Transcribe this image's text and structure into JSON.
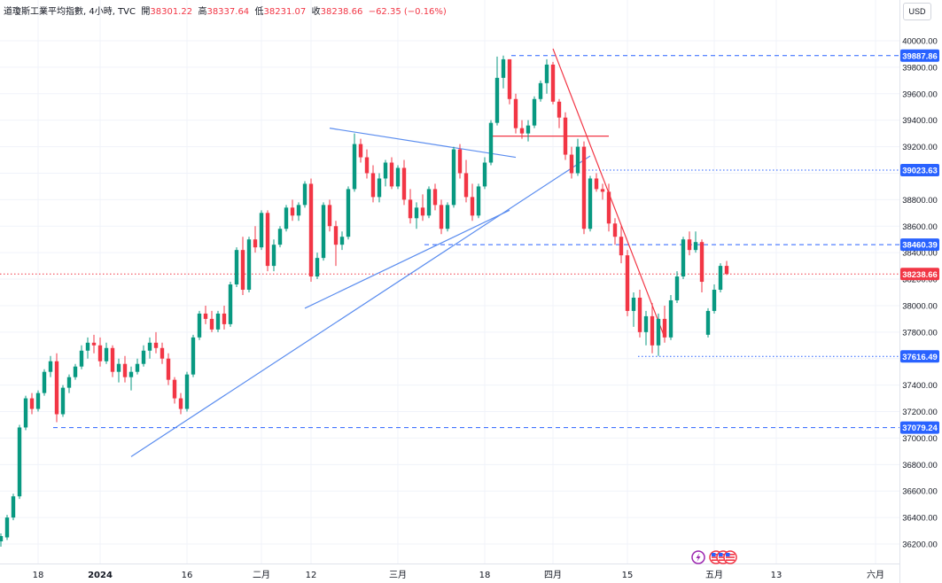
{
  "header": {
    "title": "道瓊斯工業平均指數, 4小時, TVC",
    "open_label": "開",
    "open": "38301.22",
    "high_label": "高",
    "high": "38337.64",
    "low_label": "低",
    "low": "38231.07",
    "close_label": "收",
    "close": "38238.66",
    "change": "−62.35 (−0.16%)"
  },
  "currency_button": "USD",
  "colors": {
    "up": "#089981",
    "down": "#f23645",
    "trend_blue": "#5b8def",
    "trend_red": "#f23645",
    "grid": "#f0f3fa",
    "axis_text": "#131722"
  },
  "events": [
    {
      "icon": "lightning-icon"
    },
    {
      "icon": "us-flag-icon"
    },
    {
      "icon": "us-flag-icon"
    },
    {
      "icon": "us-flag-icon"
    }
  ],
  "chart_data": {
    "type": "candlestick",
    "ylim": [
      36100,
      40050
    ],
    "y_ticks": [
      36200,
      36400,
      36600,
      36800,
      37000,
      37200,
      37400,
      37600,
      37800,
      38000,
      38200,
      38400,
      38600,
      38800,
      39000,
      39200,
      39400,
      39600,
      39800,
      40000
    ],
    "y_tick_labels": [
      "36200.00",
      "36400.00",
      "36600.00",
      "36800.00",
      "37000.00",
      "37200.00",
      "37400.00",
      "37600.00",
      "37800.00",
      "38000.00",
      "38200.00",
      "38400.00",
      "38600.00",
      "38800.00",
      "39000.00",
      "39200.00",
      "39400.00",
      "39600.00",
      "39800.00",
      "40000.00"
    ],
    "x_labels": [
      {
        "label": "18",
        "i": 6
      },
      {
        "label": "2024",
        "i": 16
      },
      {
        "label": "16",
        "i": 30
      },
      {
        "label": "二月",
        "i": 42
      },
      {
        "label": "12",
        "i": 50
      },
      {
        "label": "三月",
        "i": 64
      },
      {
        "label": "18",
        "i": 78
      },
      {
        "label": "四月",
        "i": 89
      },
      {
        "label": "15",
        "i": 101
      },
      {
        "label": "五月",
        "i": 115
      },
      {
        "label": "13",
        "i": 125
      },
      {
        "label": "六月",
        "i": 141
      }
    ],
    "price_lines": [
      {
        "label": "39887.86",
        "value": 39887.86,
        "style": "dashed",
        "color": "#2962ff"
      },
      {
        "label": "39023.63",
        "value": 39023.63,
        "style": "dotted",
        "color": "#2962ff"
      },
      {
        "label": "38460.39",
        "value": 38460.39,
        "style": "dashed",
        "color": "#2962ff"
      },
      {
        "label": "38238.66",
        "value": 38238.66,
        "style": "dotted",
        "color": "#f23645"
      },
      {
        "label": "37616.49",
        "value": 37616.49,
        "style": "dotted",
        "color": "#2962ff"
      },
      {
        "label": "37079.24",
        "value": 37079.24,
        "style": "dashed",
        "color": "#2962ff"
      }
    ],
    "trendlines": [
      {
        "from": [
          21,
          36860
        ],
        "to": [
          95,
          39130
        ],
        "color": "blue"
      },
      {
        "from": [
          49,
          37980
        ],
        "to": [
          82,
          38720
        ],
        "color": "blue"
      },
      {
        "from": [
          53,
          39340
        ],
        "to": [
          83,
          39120
        ],
        "color": "blue"
      },
      {
        "from": [
          79,
          39280
        ],
        "to": [
          98,
          39280
        ],
        "color": "red"
      },
      {
        "from": [
          89,
          39940
        ],
        "to": [
          107,
          37760
        ],
        "color": "red"
      }
    ],
    "candles": [
      [
        36220,
        36280,
        36180,
        36260
      ],
      [
        36250,
        36420,
        36230,
        36400
      ],
      [
        36400,
        36580,
        36380,
        36560
      ],
      [
        36560,
        37100,
        36540,
        37080
      ],
      [
        37080,
        37320,
        37060,
        37300
      ],
      [
        37300,
        37340,
        37180,
        37220
      ],
      [
        37220,
        37360,
        37200,
        37340
      ],
      [
        37340,
        37520,
        37320,
        37500
      ],
      [
        37500,
        37620,
        37460,
        37580
      ],
      [
        37580,
        37640,
        37120,
        37180
      ],
      [
        37180,
        37400,
        37160,
        37380
      ],
      [
        37380,
        37480,
        37340,
        37460
      ],
      [
        37460,
        37560,
        37440,
        37540
      ],
      [
        37540,
        37700,
        37520,
        37660
      ],
      [
        37660,
        37760,
        37600,
        37720
      ],
      [
        37720,
        37780,
        37640,
        37700
      ],
      [
        37700,
        37760,
        37540,
        37580
      ],
      [
        37580,
        37720,
        37560,
        37680
      ],
      [
        37680,
        37700,
        37460,
        37500
      ],
      [
        37500,
        37600,
        37420,
        37560
      ],
      [
        37560,
        37620,
        37420,
        37460
      ],
      [
        37460,
        37540,
        37360,
        37500
      ],
      [
        37500,
        37600,
        37480,
        37560
      ],
      [
        37560,
        37700,
        37540,
        37660
      ],
      [
        37660,
        37760,
        37600,
        37720
      ],
      [
        37720,
        37800,
        37640,
        37680
      ],
      [
        37680,
        37720,
        37560,
        37600
      ],
      [
        37600,
        37640,
        37400,
        37440
      ],
      [
        37440,
        37460,
        37260,
        37300
      ],
      [
        37300,
        37340,
        37180,
        37220
      ],
      [
        37220,
        37500,
        37200,
        37480
      ],
      [
        37480,
        37780,
        37460,
        37760
      ],
      [
        37760,
        37960,
        37740,
        37940
      ],
      [
        37940,
        38000,
        37860,
        37900
      ],
      [
        37900,
        37960,
        37800,
        37820
      ],
      [
        37820,
        37960,
        37800,
        37940
      ],
      [
        37940,
        38000,
        37820,
        37860
      ],
      [
        37860,
        38180,
        37840,
        38160
      ],
      [
        38160,
        38440,
        38140,
        38420
      ],
      [
        38420,
        38520,
        38080,
        38120
      ],
      [
        38120,
        38520,
        38100,
        38500
      ],
      [
        38500,
        38600,
        38400,
        38440
      ],
      [
        38440,
        38720,
        38420,
        38700
      ],
      [
        38700,
        38720,
        38260,
        38300
      ],
      [
        38300,
        38500,
        38260,
        38460
      ],
      [
        38460,
        38600,
        38440,
        38580
      ],
      [
        38580,
        38760,
        38560,
        38740
      ],
      [
        38740,
        38800,
        38640,
        38680
      ],
      [
        38680,
        38780,
        38640,
        38760
      ],
      [
        38760,
        38940,
        38740,
        38920
      ],
      [
        38920,
        38960,
        38180,
        38220
      ],
      [
        38220,
        38400,
        38200,
        38360
      ],
      [
        38360,
        38780,
        38340,
        38760
      ],
      [
        38760,
        38800,
        38560,
        38600
      ],
      [
        38600,
        38640,
        38300,
        38460
      ],
      [
        38460,
        38560,
        38420,
        38520
      ],
      [
        38520,
        38900,
        38500,
        38880
      ],
      [
        38880,
        39300,
        38860,
        39220
      ],
      [
        39220,
        39260,
        39080,
        39120
      ],
      [
        39120,
        39180,
        38960,
        39000
      ],
      [
        39000,
        39060,
        38780,
        38820
      ],
      [
        38820,
        39000,
        38780,
        38960
      ],
      [
        38960,
        39100,
        38900,
        39080
      ],
      [
        39080,
        39120,
        38880,
        38900
      ],
      [
        38900,
        39060,
        38880,
        39040
      ],
      [
        39040,
        39100,
        38760,
        38800
      ],
      [
        38800,
        38880,
        38620,
        38660
      ],
      [
        38660,
        38780,
        38580,
        38740
      ],
      [
        38740,
        38840,
        38640,
        38680
      ],
      [
        38680,
        38900,
        38660,
        38880
      ],
      [
        38880,
        38920,
        38720,
        38760
      ],
      [
        38760,
        38800,
        38540,
        38580
      ],
      [
        38580,
        38780,
        38560,
        38760
      ],
      [
        38760,
        39200,
        38740,
        39180
      ],
      [
        39180,
        39220,
        38960,
        39000
      ],
      [
        39000,
        39100,
        38780,
        38820
      ],
      [
        38820,
        38920,
        38640,
        38680
      ],
      [
        38680,
        38920,
        38660,
        38900
      ],
      [
        38900,
        39120,
        38880,
        39080
      ],
      [
        39080,
        39400,
        39060,
        39380
      ],
      [
        39380,
        39880,
        39360,
        39720
      ],
      [
        39720,
        39888,
        39640,
        39860
      ],
      [
        39860,
        39860,
        39520,
        39560
      ],
      [
        39560,
        39600,
        39300,
        39340
      ],
      [
        39340,
        39400,
        39260,
        39300
      ],
      [
        39300,
        39400,
        39240,
        39360
      ],
      [
        39360,
        39580,
        39340,
        39560
      ],
      [
        39560,
        39700,
        39540,
        39680
      ],
      [
        39680,
        39860,
        39600,
        39820
      ],
      [
        39820,
        39840,
        39520,
        39540
      ],
      [
        39540,
        39560,
        39340,
        39420
      ],
      [
        39420,
        39460,
        39100,
        39140
      ],
      [
        39140,
        39200,
        38960,
        39000
      ],
      [
        39000,
        39260,
        38980,
        39200
      ],
      [
        39200,
        39240,
        38540,
        38580
      ],
      [
        38580,
        38980,
        38560,
        38960
      ],
      [
        38960,
        39000,
        38860,
        38880
      ],
      [
        38880,
        38920,
        38800,
        38860
      ],
      [
        38860,
        38920,
        38560,
        38620
      ],
      [
        38620,
        38660,
        38460,
        38520
      ],
      [
        38520,
        38600,
        38320,
        38380
      ],
      [
        38380,
        38420,
        37920,
        37960
      ],
      [
        37960,
        38100,
        37840,
        38060
      ],
      [
        38060,
        38120,
        37760,
        37800
      ],
      [
        37800,
        37960,
        37700,
        37920
      ],
      [
        37920,
        38020,
        37640,
        37700
      ],
      [
        37700,
        37940,
        37620,
        37900
      ],
      [
        37900,
        38000,
        37720,
        37760
      ],
      [
        37760,
        38080,
        37740,
        38040
      ],
      [
        38040,
        38260,
        38020,
        38220
      ],
      [
        38220,
        38520,
        38200,
        38500
      ],
      [
        38500,
        38560,
        38380,
        38420
      ],
      [
        38420,
        38560,
        38400,
        38480
      ],
      [
        38480,
        38500,
        38100,
        38180
      ],
      [
        37780,
        37980,
        37760,
        37960
      ],
      [
        37960,
        38160,
        37940,
        38120
      ],
      [
        38120,
        38320,
        38100,
        38300
      ],
      [
        38300,
        38337.64,
        38231.07,
        38238.66
      ]
    ]
  }
}
